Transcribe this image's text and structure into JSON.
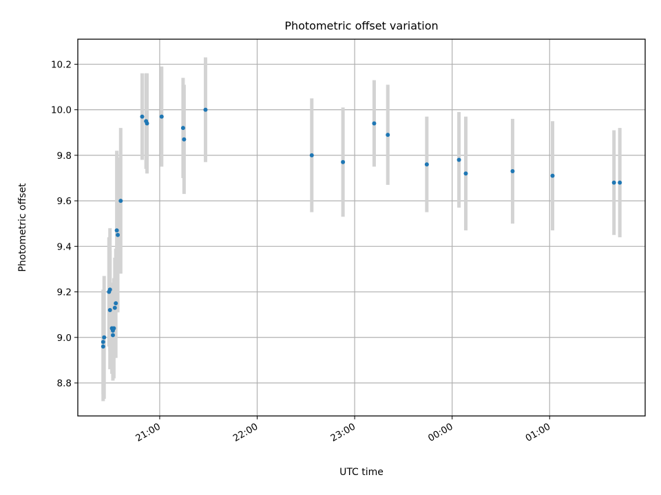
{
  "chart_data": {
    "type": "scatter",
    "title": "Photometric offset variation",
    "xlabel": "UTC time",
    "ylabel": "Photometric offset",
    "x_unit": "UTC time, hours past 00:00 of first night (values >= 24 are after midnight)",
    "xlim": [
      20.16,
      25.98
    ],
    "ylim": [
      8.655,
      10.31
    ],
    "grid": true,
    "colors": {
      "points": "#1f77b4",
      "errorbars": "#d3d3d3"
    },
    "xticks": [
      {
        "value": 21,
        "label": "21:00"
      },
      {
        "value": 22,
        "label": "22:00"
      },
      {
        "value": 23,
        "label": "23:00"
      },
      {
        "value": 24,
        "label": "00:00"
      },
      {
        "value": 25,
        "label": "01:00"
      }
    ],
    "yticks": [
      {
        "value": 8.8,
        "label": "8.8"
      },
      {
        "value": 9.0,
        "label": "9.0"
      },
      {
        "value": 9.2,
        "label": "9.2"
      },
      {
        "value": 9.4,
        "label": "9.4"
      },
      {
        "value": 9.6,
        "label": "9.6"
      },
      {
        "value": 9.8,
        "label": "9.8"
      },
      {
        "value": 10.0,
        "label": "10.0"
      },
      {
        "value": 10.2,
        "label": "10.2"
      }
    ],
    "points": [
      {
        "x": 20.42,
        "y": 8.96,
        "yerr": 0.24
      },
      {
        "x": 20.42,
        "y": 8.98,
        "yerr": 0.23
      },
      {
        "x": 20.43,
        "y": 9.0,
        "yerr": 0.27
      },
      {
        "x": 20.48,
        "y": 9.2,
        "yerr": 0.24
      },
      {
        "x": 20.49,
        "y": 9.21,
        "yerr": 0.27
      },
      {
        "x": 20.49,
        "y": 9.12,
        "yerr": 0.26
      },
      {
        "x": 20.51,
        "y": 9.04,
        "yerr": 0.2
      },
      {
        "x": 20.52,
        "y": 9.01,
        "yerr": 0.2
      },
      {
        "x": 20.52,
        "y": 9.03,
        "yerr": 0.21
      },
      {
        "x": 20.53,
        "y": 9.04,
        "yerr": 0.22
      },
      {
        "x": 20.54,
        "y": 9.13,
        "yerr": 0.22
      },
      {
        "x": 20.55,
        "y": 9.15,
        "yerr": 0.24
      },
      {
        "x": 20.56,
        "y": 9.47,
        "yerr": 0.35
      },
      {
        "x": 20.57,
        "y": 9.45,
        "yerr": 0.34
      },
      {
        "x": 20.6,
        "y": 9.6,
        "yerr": 0.32
      },
      {
        "x": 20.82,
        "y": 9.97,
        "yerr": 0.19
      },
      {
        "x": 20.86,
        "y": 9.95,
        "yerr": 0.21
      },
      {
        "x": 20.87,
        "y": 9.94,
        "yerr": 0.22
      },
      {
        "x": 21.02,
        "y": 9.97,
        "yerr": 0.22
      },
      {
        "x": 21.24,
        "y": 9.92,
        "yerr": 0.22
      },
      {
        "x": 21.25,
        "y": 9.87,
        "yerr": 0.24
      },
      {
        "x": 21.47,
        "y": 10.0,
        "yerr": 0.23
      },
      {
        "x": 22.56,
        "y": 9.8,
        "yerr": 0.25
      },
      {
        "x": 22.88,
        "y": 9.77,
        "yerr": 0.24
      },
      {
        "x": 23.2,
        "y": 9.94,
        "yerr": 0.19
      },
      {
        "x": 23.34,
        "y": 9.89,
        "yerr": 0.22
      },
      {
        "x": 23.74,
        "y": 9.76,
        "yerr": 0.21
      },
      {
        "x": 24.07,
        "y": 9.78,
        "yerr": 0.21
      },
      {
        "x": 24.14,
        "y": 9.72,
        "yerr": 0.25
      },
      {
        "x": 24.62,
        "y": 9.73,
        "yerr": 0.23
      },
      {
        "x": 25.03,
        "y": 9.71,
        "yerr": 0.24
      },
      {
        "x": 25.66,
        "y": 9.68,
        "yerr": 0.23
      },
      {
        "x": 25.72,
        "y": 9.68,
        "yerr": 0.24
      }
    ]
  }
}
